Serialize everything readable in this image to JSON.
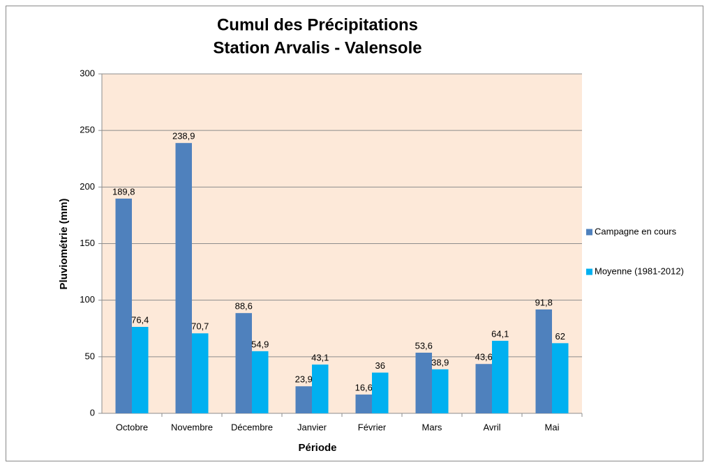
{
  "chart_data": {
    "type": "bar",
    "title": [
      "Cumul des Précipitations",
      "Station Arvalis - Valensole"
    ],
    "x_label": "Période",
    "y_label": "Pluviométrie (mm)",
    "categories": [
      "Octobre",
      "Novembre",
      "Décembre",
      "Janvier",
      "Février",
      "Mars",
      "Avril",
      "Mai"
    ],
    "series": [
      {
        "name": "Campagne en cours",
        "color": "#4f81bd",
        "values": [
          189.8,
          238.9,
          88.6,
          23.9,
          16.6,
          53.6,
          43.6,
          91.8
        ],
        "value_labels": [
          "189,8",
          "238,9",
          "88,6",
          "23,9",
          "16,6",
          "53,6",
          "43,6",
          "91,8"
        ]
      },
      {
        "name": "Moyenne (1981-2012)",
        "color": "#00b0f0",
        "values": [
          76.4,
          70.7,
          54.9,
          43.1,
          36,
          38.9,
          64.1,
          62
        ],
        "value_labels": [
          "76,4",
          "70,7",
          "54,9",
          "43,1",
          "36",
          "38,9",
          "64,1",
          "62"
        ]
      }
    ],
    "ylim": [
      0,
      300
    ],
    "yticks": [
      0,
      50,
      100,
      150,
      200,
      250,
      300
    ],
    "grid": true,
    "plot_background": "#fde9d9",
    "legend": "right"
  }
}
